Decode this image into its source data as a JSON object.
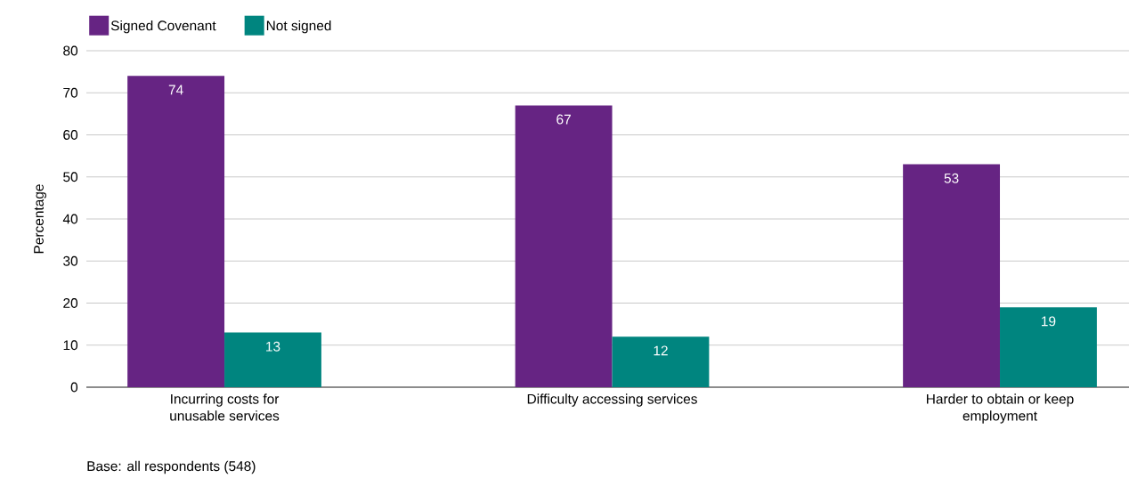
{
  "chart_data": {
    "type": "bar",
    "ylabel": "Percentage",
    "categories": [
      "Incurring costs for unusable services",
      "Difficulty accessing services",
      "Harder to obtain or keep employment"
    ],
    "series": [
      {
        "name": "Signed Covenant",
        "color": "#662483",
        "values": [
          74,
          67,
          53
        ]
      },
      {
        "name": "Not signed",
        "color": "#00857f",
        "values": [
          13,
          12,
          19
        ]
      }
    ],
    "ylim": [
      0,
      80
    ],
    "yticks": [
      0,
      10,
      20,
      30,
      40,
      50,
      60,
      70,
      80
    ],
    "grid": "y",
    "legend": "top left",
    "data_labels": true,
    "annotations": [
      "Base: all respondents (548)"
    ]
  }
}
